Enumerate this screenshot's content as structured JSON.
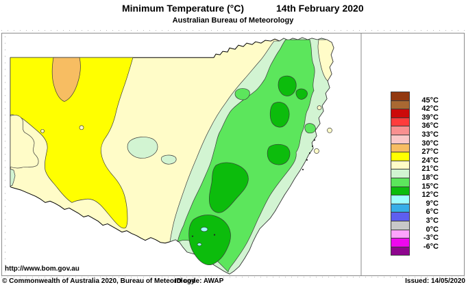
{
  "header": {
    "title": "Minimum Temperature (°C)",
    "date": "14th February 2020",
    "subtitle": "Australian Bureau of Meteorology"
  },
  "map": {
    "url_label": "http://www.bom.gov.au",
    "visible_zones": [
      "27-30°C",
      "24-27°C",
      "21-24°C",
      "18-21°C",
      "15-18°C",
      "12-15°C",
      "9-12°C"
    ]
  },
  "legend": {
    "labels": [
      "45°C",
      "42°C",
      "39°C",
      "36°C",
      "33°C",
      "30°C",
      "27°C",
      "24°C",
      "21°C",
      "18°C",
      "15°C",
      "12°C",
      "9°C",
      "6°C",
      "3°C",
      "0°C",
      "-3°C",
      "-6°C"
    ]
  },
  "palette": {
    "zone_45_plus": "#92380F",
    "zone_42_45": "#A96832",
    "zone_39_42": "#CC0A0A",
    "zone_36_39": "#FF3C3C",
    "zone_33_36": "#F99090",
    "zone_30_33": "#FBC8C8",
    "zone_27_30": "#F7BD62",
    "zone_24_27": "#FFFF00",
    "zone_21_24": "#FFFCC8",
    "zone_18_21": "#D2F4D2",
    "zone_15_18": "#5CE65C",
    "zone_12_15": "#0CBC0C",
    "zone_9_12": "#9EFEFF",
    "zone_6_9": "#36AEE8",
    "zone_3_6": "#5E5EF0",
    "zone_0_3": "#C8C8C8",
    "zone_m3_0": "#FDA2FD",
    "zone_m6_m3": "#EE08EE",
    "zone_below_m6": "#8E068E"
  },
  "footer": {
    "copyright": "© Commonwealth of Australia 2020, Bureau of Meteorology",
    "id_code": "ID code: AWAP",
    "issued": "Issued: 14/05/2020"
  }
}
